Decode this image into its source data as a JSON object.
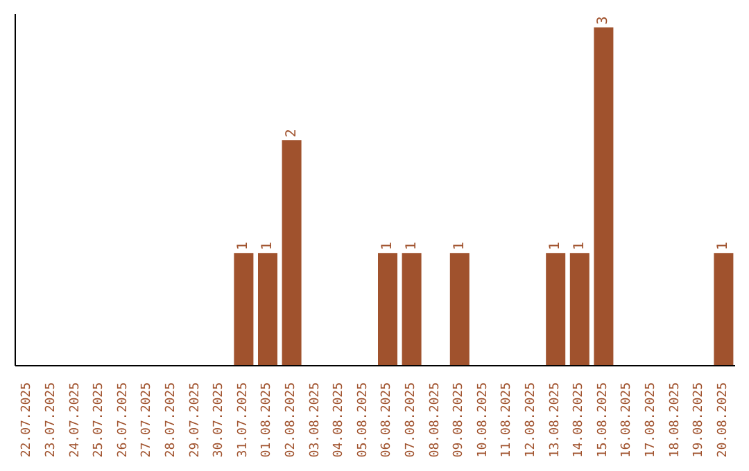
{
  "chart_data": {
    "type": "bar",
    "categories": [
      "22.07.2025",
      "23.07.2025",
      "24.07.2025",
      "25.07.2025",
      "26.07.2025",
      "27.07.2025",
      "28.07.2025",
      "29.07.2025",
      "30.07.2025",
      "31.07.2025",
      "01.08.2025",
      "02.08.2025",
      "03.08.2025",
      "04.08.2025",
      "05.08.2025",
      "06.08.2025",
      "07.08.2025",
      "08.08.2025",
      "09.08.2025",
      "10.08.2025",
      "11.08.2025",
      "12.08.2025",
      "13.08.2025",
      "14.08.2025",
      "15.08.2025",
      "16.08.2025",
      "17.08.2025",
      "18.08.2025",
      "19.08.2025",
      "20.08.2025"
    ],
    "values": [
      0,
      0,
      0,
      0,
      0,
      0,
      0,
      0,
      0,
      1,
      1,
      2,
      0,
      0,
      0,
      1,
      1,
      0,
      1,
      0,
      0,
      0,
      1,
      1,
      3,
      0,
      0,
      0,
      0,
      1
    ],
    "value_labels": [
      null,
      null,
      null,
      null,
      null,
      null,
      null,
      null,
      null,
      "1",
      "1",
      "2",
      null,
      null,
      null,
      "1",
      "1",
      null,
      "1",
      null,
      null,
      null,
      "1",
      "1",
      "3",
      null,
      null,
      null,
      null,
      "1"
    ],
    "color": "#a0522d"
  }
}
